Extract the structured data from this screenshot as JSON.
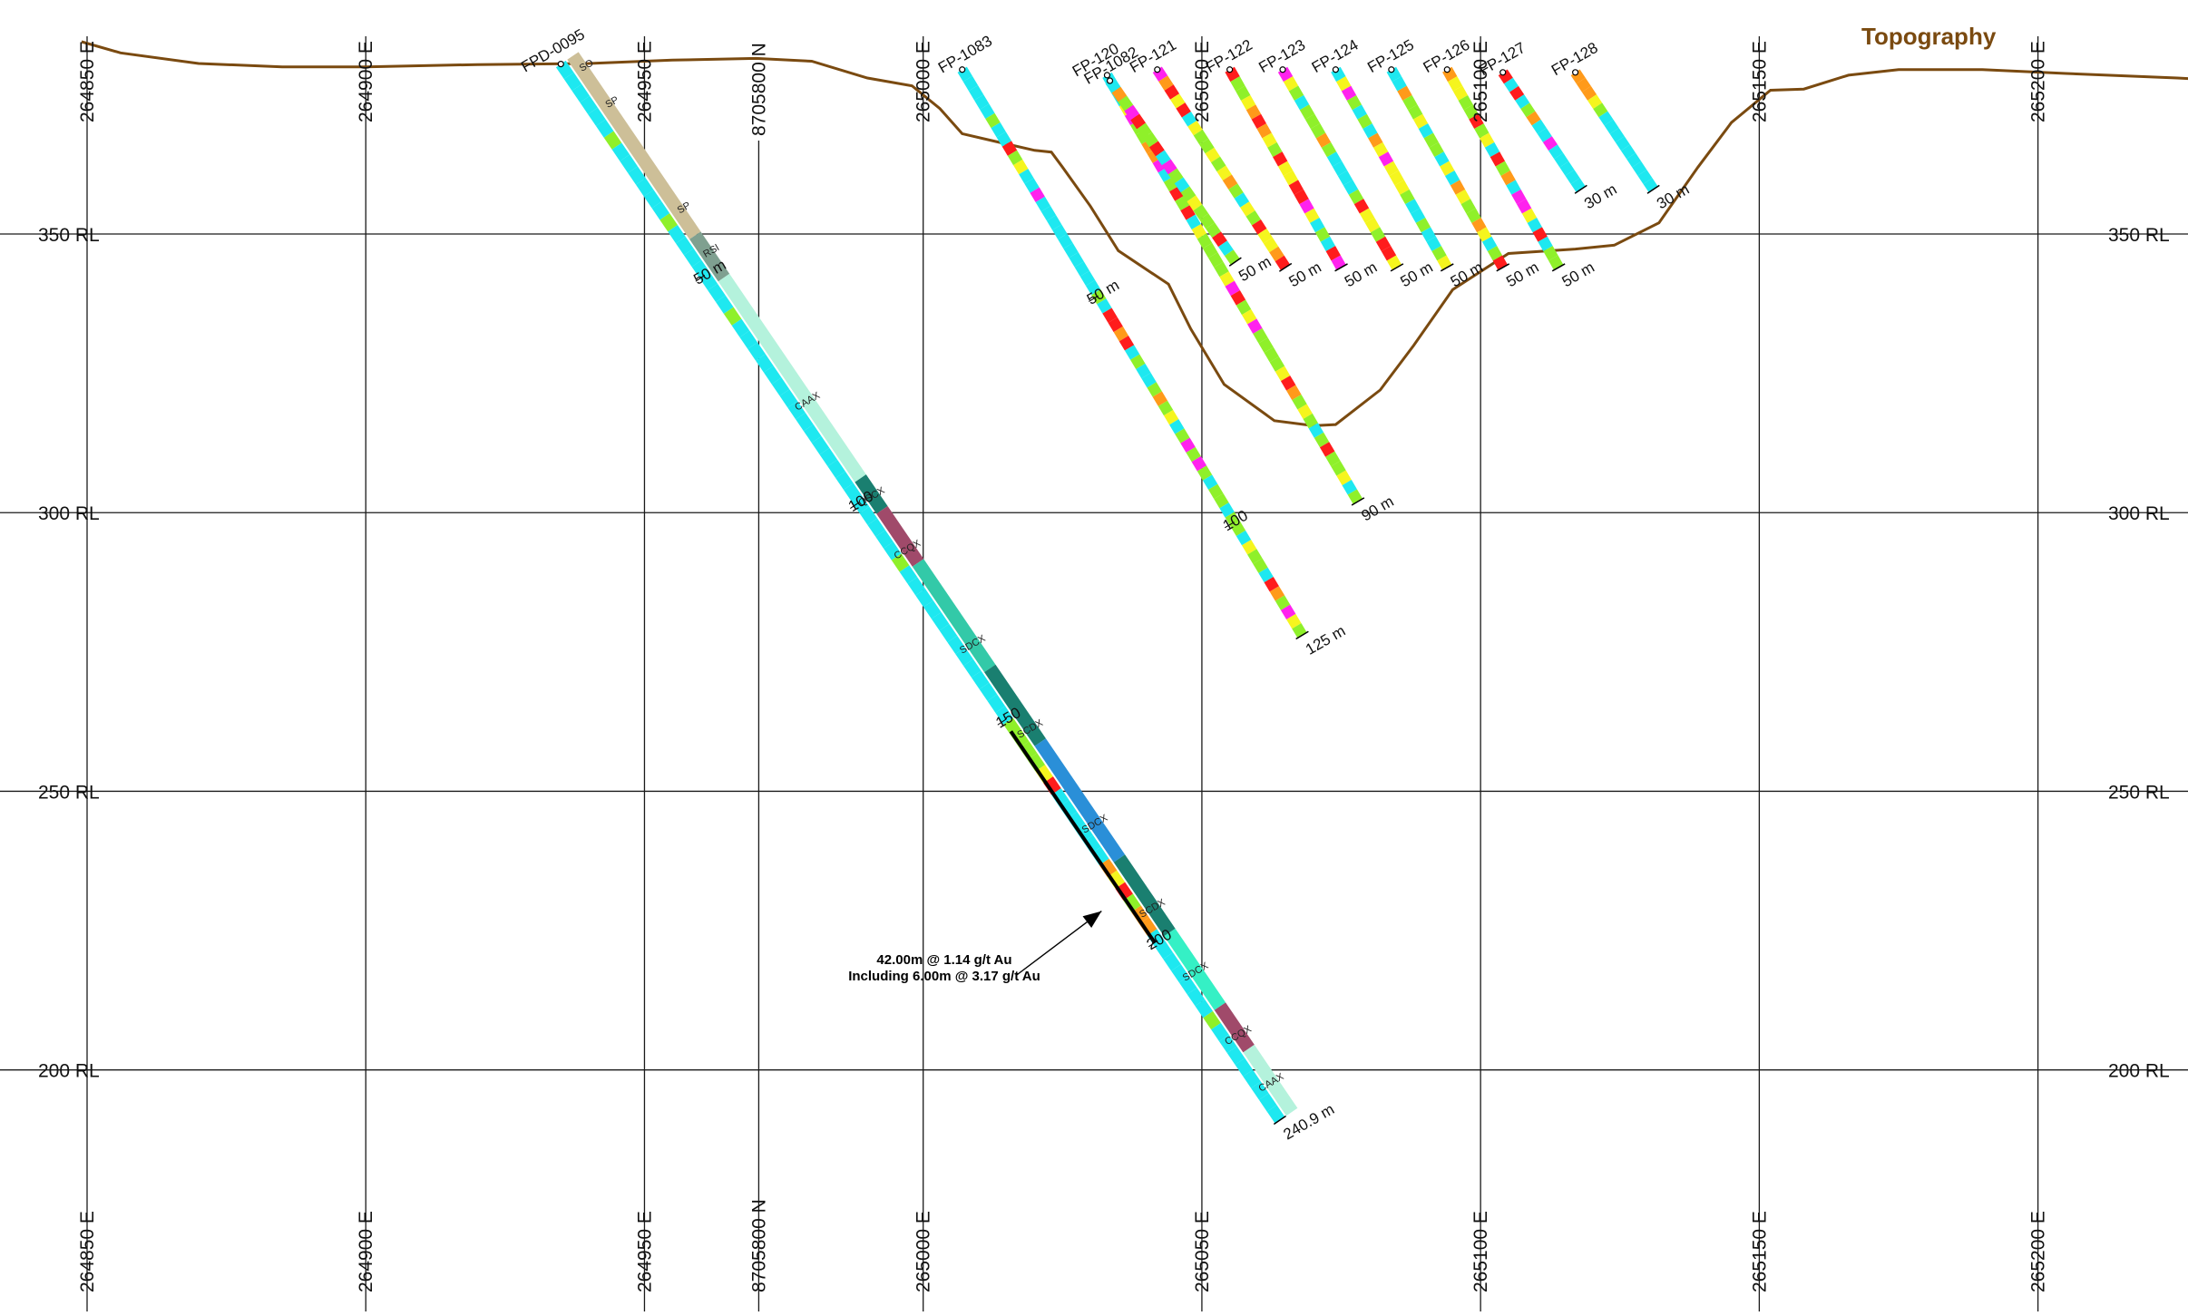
{
  "title": "",
  "topography": {
    "label": "Topography",
    "color": "#7a4a10",
    "profile": [
      [
        264849,
        384.5
      ],
      [
        264856,
        382.5
      ],
      [
        264870,
        380.6
      ],
      [
        264885,
        380.0
      ],
      [
        264900,
        380.0
      ],
      [
        264920,
        380.4
      ],
      [
        264940,
        380.6
      ],
      [
        264955,
        381.2
      ],
      [
        264970,
        381.5
      ],
      [
        264980,
        381.0
      ],
      [
        264990,
        378.0
      ],
      [
        264998,
        376.6
      ],
      [
        265003,
        372.5
      ],
      [
        265007,
        368.0
      ],
      [
        265013,
        366.6
      ],
      [
        265020,
        365.0
      ],
      [
        265023,
        364.7
      ],
      [
        265025,
        362.0
      ],
      [
        265030,
        355.0
      ],
      [
        265035,
        347.0
      ],
      [
        265044,
        341.0
      ],
      [
        265048,
        333.0
      ],
      [
        265054,
        323.0
      ],
      [
        265063,
        316.5
      ],
      [
        265070,
        315.6
      ],
      [
        265074,
        315.8
      ],
      [
        265082,
        322.0
      ],
      [
        265088,
        330.0
      ],
      [
        265095,
        340.0
      ],
      [
        265105,
        346.5
      ],
      [
        265117,
        347.3
      ],
      [
        265124,
        348.0
      ],
      [
        265132,
        352.0
      ],
      [
        265139,
        362.0
      ],
      [
        265145,
        370.0
      ],
      [
        265152,
        375.8
      ],
      [
        265158,
        376.0
      ],
      [
        265166,
        378.5
      ],
      [
        265175,
        379.5
      ],
      [
        265190,
        379.5
      ],
      [
        265205,
        378.8
      ],
      [
        265225,
        378.0
      ],
      [
        265231,
        377.7
      ]
    ]
  },
  "axes": {
    "easting_ticks": [
      "264850 E",
      "264900 E",
      "264950 E",
      "265000 E",
      "265050 E",
      "265100 E",
      "265150 E",
      "265200 E"
    ],
    "easting_values": [
      264850,
      264900,
      264950,
      265000,
      265050,
      265100,
      265150,
      265200
    ],
    "northing_tick": {
      "label": "8705800 N",
      "value": 264970.5
    },
    "rl_ticks": [
      "350 RL",
      "300 RL",
      "250 RL",
      "200 RL"
    ],
    "rl_values": [
      350,
      300,
      250,
      200
    ],
    "x_range": [
      264849,
      265231
    ],
    "y_range": [
      167,
      389
    ]
  },
  "legend_colors": {
    "cyan": "#1ee8f0",
    "lime": "#8ff02a",
    "yellow": "#f5f51e",
    "orange": "#ff9a1a",
    "red": "#ff1c1c",
    "magenta": "#ff22ee",
    "tan": "#cdbf98",
    "pale_green": "#b4f2dc",
    "teal": "#33c9a8",
    "dark_teal": "#1a7f70",
    "maroon": "#a04a6a",
    "blue": "#2a8fd8",
    "aqua": "#35f0c5"
  },
  "drillholes": [
    {
      "name": "FPD-0095",
      "collar": [
        264935,
        380.5
      ],
      "toe": [
        265064,
        191
      ],
      "end_label": "240.9 m",
      "depth_labels": [
        {
          "text": "50 m",
          "t": 0.2
        },
        {
          "text": "100",
          "t": 0.415
        },
        {
          "text": "150",
          "t": 0.62
        },
        {
          "text": "200",
          "t": 0.83
        }
      ],
      "lith_labels": [
        "SO",
        "SP",
        "SP",
        "RSI",
        "CAAX",
        "QSCX",
        "CCQX",
        "SDCX",
        "SCDX",
        "SDCX",
        "SCDX",
        "SDCX",
        "CCQX",
        "CAAX"
      ]
    },
    {
      "name": "FP-1083",
      "collar": [
        265007,
        379.5
      ],
      "toe": [
        265068,
        278
      ],
      "end_label": "125 m",
      "depth_labels": [
        {
          "text": "50 m",
          "t": 0.4
        },
        {
          "text": "100",
          "t": 0.8
        }
      ]
    },
    {
      "name": "FP-120",
      "collar": [
        265033,
        378.5
      ],
      "toe": [
        265078,
        302
      ],
      "end_label": "90 m",
      "depth_labels": []
    },
    {
      "name": "FP-1082",
      "collar": [
        265033.5,
        377.5
      ],
      "toe": [
        265056,
        345
      ],
      "end_label": "50 m",
      "depth_labels": []
    },
    {
      "name": "FP-121",
      "collar": [
        265042,
        379.5
      ],
      "toe": [
        265065,
        344
      ],
      "end_label": "50 m",
      "depth_labels": []
    },
    {
      "name": "FP-122",
      "collar": [
        265055,
        379.5
      ],
      "toe": [
        265075,
        344
      ],
      "end_label": "50 m",
      "depth_labels": []
    },
    {
      "name": "FP-123",
      "collar": [
        265064.5,
        379.5
      ],
      "toe": [
        265085,
        344
      ],
      "end_label": "50 m",
      "depth_labels": []
    },
    {
      "name": "FP-124",
      "collar": [
        265074,
        379.5
      ],
      "toe": [
        265094,
        344
      ],
      "end_label": "50 m",
      "depth_labels": []
    },
    {
      "name": "FP-125",
      "collar": [
        265084,
        379.5
      ],
      "toe": [
        265104,
        344
      ],
      "end_label": "50 m",
      "depth_labels": []
    },
    {
      "name": "FP-126",
      "collar": [
        265094,
        379.5
      ],
      "toe": [
        265114,
        344
      ],
      "end_label": "50 m",
      "depth_labels": []
    },
    {
      "name": "FP-127",
      "collar": [
        265104,
        379
      ],
      "toe": [
        265118,
        358
      ],
      "end_label": "30 m",
      "depth_labels": []
    },
    {
      "name": "FP-128",
      "collar": [
        265117,
        379
      ],
      "toe": [
        265131,
        358
      ],
      "end_label": "30 m",
      "depth_labels": []
    }
  ],
  "annotation": {
    "line1": "42.00m @ 1.14 g/t Au",
    "line2": "Including 6.00m @ 3.17 g/t Au",
    "arrow_target": [
      265032,
      228.5
    ],
    "text_anchor": [
      265004,
      216
    ]
  }
}
